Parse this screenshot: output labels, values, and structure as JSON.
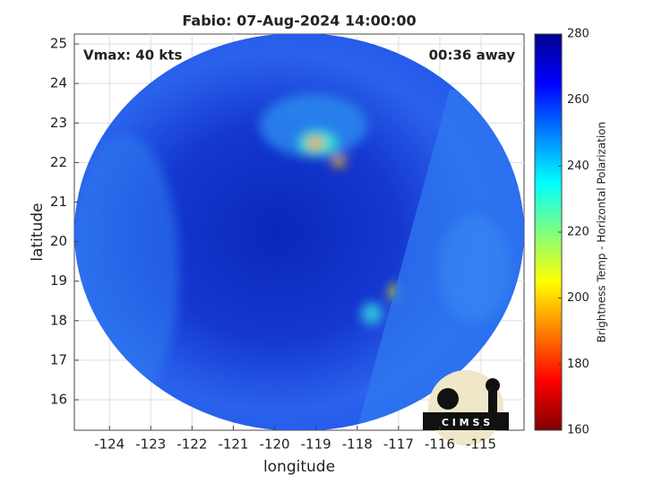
{
  "chart_data": {
    "type": "image",
    "title": "Fabio: 07-Aug-2024 14:00:00",
    "xlabel": "longitude",
    "ylabel": "latitude",
    "annotations": [
      "Vmax: 40 kts",
      "00:36 away"
    ],
    "logo_text": "C I M S S",
    "xlim": [
      -124.85,
      -113.96
    ],
    "xticks": [
      -124,
      -123,
      -122,
      -121,
      -120,
      -119,
      -118,
      -117,
      -116,
      -115
    ],
    "ylim": [
      15.23,
      25.25
    ],
    "yticks": [
      16,
      17,
      18,
      19,
      20,
      21,
      22,
      23,
      24,
      25
    ],
    "grid": true,
    "colorbar": {
      "label": "Brightness Temp - Horizontal Polarization",
      "lim": [
        160,
        280
      ],
      "ticks": [
        160,
        180,
        200,
        220,
        240,
        260,
        280
      ]
    }
  }
}
